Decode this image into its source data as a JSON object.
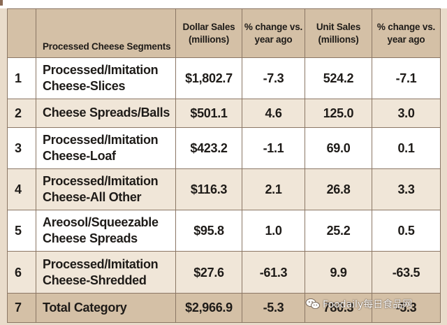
{
  "table": {
    "headers": {
      "rank": "",
      "segment": "Processed Cheese Segments",
      "dollar_sales": "Dollar Sales (millions)",
      "pct_change_1": "% change vs. year ago",
      "unit_sales": "Unit Sales (millions)",
      "pct_change_2": "% change vs. year ago"
    },
    "rows": [
      {
        "rank": "1",
        "name": "Processed/Imitation Cheese-Slices",
        "dollar_sales": "$1,802.7",
        "dollar_change": "-7.3",
        "unit_sales": "524.2",
        "unit_change": "-7.1"
      },
      {
        "rank": "2",
        "name": "Cheese Spreads/Balls",
        "dollar_sales": "$501.1",
        "dollar_change": "4.6",
        "unit_sales": "125.0",
        "unit_change": "3.0"
      },
      {
        "rank": "3",
        "name": "Processed/Imitation Cheese-Loaf",
        "dollar_sales": "$423.2",
        "dollar_change": "-1.1",
        "unit_sales": "69.0",
        "unit_change": "0.1"
      },
      {
        "rank": "4",
        "name": "Processed/Imitation Cheese-All Other",
        "dollar_sales": "$116.3",
        "dollar_change": "2.1",
        "unit_sales": "26.8",
        "unit_change": "3.3"
      },
      {
        "rank": "5",
        "name": "Areosol/Squeezable Cheese Spreads",
        "dollar_sales": "$95.8",
        "dollar_change": "1.0",
        "unit_sales": "25.2",
        "unit_change": "0.5"
      },
      {
        "rank": "6",
        "name": "Processed/Imitation Cheese-Shredded",
        "dollar_sales": "$27.6",
        "dollar_change": "-61.3",
        "unit_sales": "9.9",
        "unit_change": "-63.5"
      },
      {
        "rank": "7",
        "name": "Total Category",
        "dollar_sales": "$2,966.9",
        "dollar_change": "-5.3",
        "unit_sales": "780.3",
        "unit_change": "-5.3"
      }
    ]
  },
  "watermark": {
    "text": "Foodaily每日食品网",
    "icon": "wechat-icon"
  },
  "colors": {
    "header_bg": "#d4c0a6",
    "row_alt_bg": "#f0e6d8",
    "row_bg": "#ffffff",
    "border": "#8b7765",
    "text": "#1e1b18"
  }
}
